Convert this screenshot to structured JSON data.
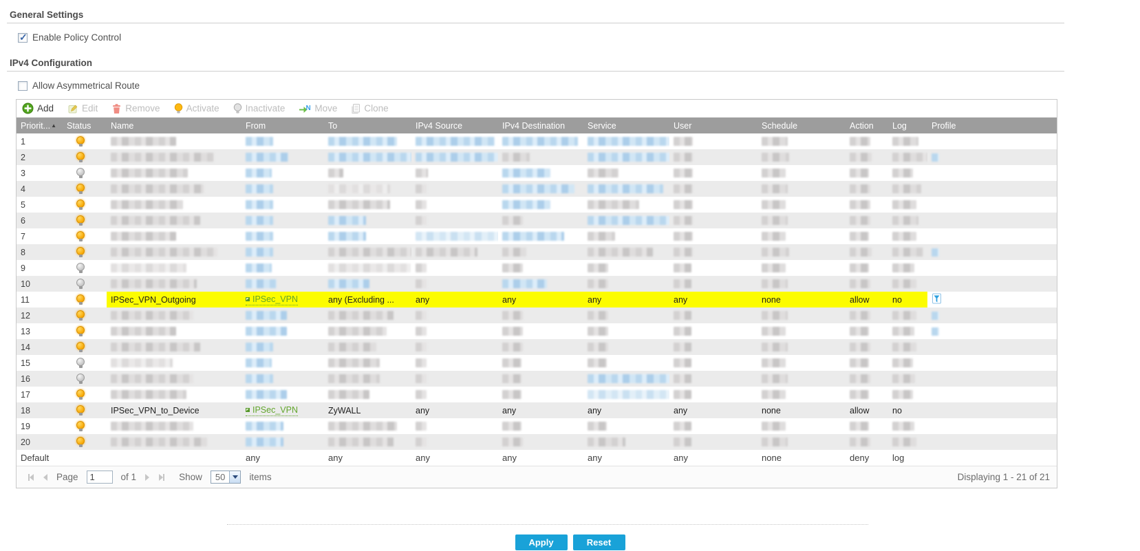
{
  "general_settings": {
    "title": "General Settings",
    "enable_policy_label": "Enable Policy Control",
    "enabled": true
  },
  "ipv4_config": {
    "title": "IPv4 Configuration",
    "allow_asym_label": "Allow Asymmetrical Route",
    "allowed": false
  },
  "toolbar": [
    {
      "id": "add",
      "label": "Add",
      "enabled": true
    },
    {
      "id": "edit",
      "label": "Edit",
      "enabled": false
    },
    {
      "id": "remove",
      "label": "Remove",
      "enabled": false
    },
    {
      "id": "activate",
      "label": "Activate",
      "enabled": false
    },
    {
      "id": "inactivate",
      "label": "Inactivate",
      "enabled": false
    },
    {
      "id": "move",
      "label": "Move",
      "enabled": false
    },
    {
      "id": "clone",
      "label": "Clone",
      "enabled": false
    }
  ],
  "table": {
    "columns": [
      {
        "key": "priority",
        "label": "Priorit...",
        "sorted": "asc"
      },
      {
        "key": "status",
        "label": "Status"
      },
      {
        "key": "name",
        "label": "Name"
      },
      {
        "key": "from",
        "label": "From"
      },
      {
        "key": "to",
        "label": "To"
      },
      {
        "key": "src",
        "label": "IPv4 Source"
      },
      {
        "key": "dst",
        "label": "IPv4 Destination"
      },
      {
        "key": "svc",
        "label": "Service"
      },
      {
        "key": "user",
        "label": "User"
      },
      {
        "key": "sched",
        "label": "Schedule"
      },
      {
        "key": "act",
        "label": "Action"
      },
      {
        "key": "log",
        "label": "Log"
      },
      {
        "key": "profile",
        "label": "Profile"
      }
    ],
    "rows": [
      {
        "priority": "1",
        "status": "on",
        "redacted": true,
        "blocks": {
          "name": [
            95,
            "g"
          ],
          "from": [
            40,
            "b"
          ],
          "to": [
            100,
            "b"
          ],
          "src": [
            115,
            "b"
          ],
          "dst": [
            110,
            "b"
          ],
          "svc": [
            120,
            "b"
          ],
          "user": [
            28,
            "g"
          ],
          "sched": [
            38,
            "g"
          ],
          "act": [
            30,
            "g"
          ],
          "log": [
            38,
            "g"
          ]
        },
        "profile": null
      },
      {
        "priority": "2",
        "status": "on",
        "redacted": true,
        "blocks": {
          "name": [
            150,
            "g"
          ],
          "from": [
            62,
            "b"
          ],
          "to": [
            160,
            "b"
          ],
          "src": [
            120,
            "b"
          ],
          "dst": [
            40,
            "g"
          ],
          "svc": [
            145,
            "b"
          ],
          "user": [
            28,
            "g"
          ],
          "sched": [
            40,
            "g"
          ],
          "act": [
            32,
            "g"
          ],
          "log": [
            52,
            "g"
          ]
        },
        "profile": "blur"
      },
      {
        "priority": "3",
        "status": "off",
        "redacted": true,
        "blocks": {
          "name": [
            112,
            "g"
          ],
          "from": [
            38,
            "b"
          ],
          "to": [
            22,
            "g"
          ],
          "src": [
            18,
            "g"
          ],
          "dst": [
            70,
            "b"
          ],
          "svc": [
            45,
            "g"
          ],
          "user": [
            28,
            "g"
          ],
          "sched": [
            35,
            "g"
          ],
          "act": [
            28,
            "g"
          ],
          "log": [
            30,
            "g"
          ]
        },
        "profile": null
      },
      {
        "priority": "4",
        "status": "on",
        "redacted": true,
        "blocks": {
          "name": [
            135,
            "g"
          ],
          "from": [
            40,
            "b"
          ],
          "to": [
            90,
            "lg"
          ],
          "src": [
            16,
            "g"
          ],
          "dst": [
            105,
            "b"
          ],
          "svc": [
            110,
            "b"
          ],
          "user": [
            28,
            "g"
          ],
          "sched": [
            38,
            "g"
          ],
          "act": [
            30,
            "g"
          ],
          "log": [
            42,
            "g"
          ]
        },
        "profile": null
      },
      {
        "priority": "5",
        "status": "on",
        "redacted": true,
        "blocks": {
          "name": [
            105,
            "g"
          ],
          "from": [
            40,
            "b"
          ],
          "to": [
            90,
            "g"
          ],
          "src": [
            16,
            "g"
          ],
          "dst": [
            70,
            "b"
          ],
          "svc": [
            75,
            "g"
          ],
          "user": [
            28,
            "g"
          ],
          "sched": [
            35,
            "g"
          ],
          "act": [
            30,
            "g"
          ],
          "log": [
            35,
            "g"
          ]
        },
        "profile": null
      },
      {
        "priority": "6",
        "status": "on",
        "redacted": true,
        "blocks": {
          "name": [
            130,
            "g"
          ],
          "from": [
            40,
            "b"
          ],
          "to": [
            55,
            "b"
          ],
          "src": [
            16,
            "g"
          ],
          "dst": [
            30,
            "g"
          ],
          "svc": [
            120,
            "b"
          ],
          "user": [
            28,
            "g"
          ],
          "sched": [
            38,
            "g"
          ],
          "act": [
            30,
            "g"
          ],
          "log": [
            38,
            "g"
          ]
        },
        "profile": null
      },
      {
        "priority": "7",
        "status": "on",
        "redacted": true,
        "blocks": {
          "name": [
            95,
            "g"
          ],
          "from": [
            40,
            "b"
          ],
          "to": [
            55,
            "b"
          ],
          "src": [
            130,
            "lb"
          ],
          "dst": [
            90,
            "b"
          ],
          "svc": [
            40,
            "g"
          ],
          "user": [
            28,
            "g"
          ],
          "sched": [
            35,
            "g"
          ],
          "act": [
            28,
            "g"
          ],
          "log": [
            35,
            "g"
          ]
        },
        "profile": null
      },
      {
        "priority": "8",
        "status": "on",
        "redacted": true,
        "blocks": {
          "name": [
            155,
            "g"
          ],
          "from": [
            40,
            "b"
          ],
          "to": [
            130,
            "g"
          ],
          "src": [
            90,
            "g"
          ],
          "dst": [
            35,
            "g"
          ],
          "svc": [
            95,
            "g"
          ],
          "user": [
            28,
            "g"
          ],
          "sched": [
            40,
            "g"
          ],
          "act": [
            32,
            "g"
          ],
          "log": [
            45,
            "g"
          ]
        },
        "profile": "blur"
      },
      {
        "priority": "9",
        "status": "off",
        "redacted": true,
        "blocks": {
          "name": [
            110,
            "lg"
          ],
          "from": [
            38,
            "b"
          ],
          "to": [
            120,
            "lg"
          ],
          "src": [
            16,
            "g"
          ],
          "dst": [
            30,
            "g"
          ],
          "svc": [
            30,
            "g"
          ],
          "user": [
            26,
            "g"
          ],
          "sched": [
            35,
            "g"
          ],
          "act": [
            28,
            "g"
          ],
          "log": [
            32,
            "g"
          ]
        },
        "profile": null
      },
      {
        "priority": "10",
        "status": "off",
        "redacted": true,
        "blocks": {
          "name": [
            125,
            "g"
          ],
          "from": [
            45,
            "b"
          ],
          "to": [
            60,
            "b"
          ],
          "src": [
            16,
            "g"
          ],
          "dst": [
            65,
            "b"
          ],
          "svc": [
            30,
            "g"
          ],
          "user": [
            26,
            "g"
          ],
          "sched": [
            38,
            "g"
          ],
          "act": [
            30,
            "g"
          ],
          "log": [
            35,
            "g"
          ]
        },
        "profile": null
      },
      {
        "priority": "11",
        "status": "on",
        "highlight": true,
        "from_link": true,
        "cells": {
          "name": "IPSec_VPN_Outgoing",
          "from": "IPSec_VPN",
          "to": "any (Excluding ...",
          "src": "any",
          "dst": "any",
          "svc": "any",
          "user": "any",
          "sched": "none",
          "act": "allow",
          "log": "no"
        },
        "profile": "funnel"
      },
      {
        "priority": "12",
        "status": "on",
        "redacted": true,
        "blocks": {
          "name": [
            120,
            "g"
          ],
          "from": [
            60,
            "b"
          ],
          "to": [
            95,
            "g"
          ],
          "src": [
            16,
            "g"
          ],
          "dst": [
            30,
            "g"
          ],
          "svc": [
            30,
            "g"
          ],
          "user": [
            26,
            "g"
          ],
          "sched": [
            38,
            "g"
          ],
          "act": [
            30,
            "g"
          ],
          "log": [
            35,
            "g"
          ]
        },
        "profile": "blur"
      },
      {
        "priority": "13",
        "status": "on",
        "redacted": true,
        "blocks": {
          "name": [
            95,
            "g"
          ],
          "from": [
            60,
            "b"
          ],
          "to": [
            85,
            "g"
          ],
          "src": [
            16,
            "g"
          ],
          "dst": [
            30,
            "g"
          ],
          "svc": [
            30,
            "g"
          ],
          "user": [
            26,
            "g"
          ],
          "sched": [
            35,
            "g"
          ],
          "act": [
            28,
            "g"
          ],
          "log": [
            32,
            "g"
          ]
        },
        "profile": "blur"
      },
      {
        "priority": "14",
        "status": "on",
        "redacted": true,
        "blocks": {
          "name": [
            130,
            "g"
          ],
          "from": [
            40,
            "b"
          ],
          "to": [
            70,
            "g"
          ],
          "src": [
            16,
            "g"
          ],
          "dst": [
            30,
            "g"
          ],
          "svc": [
            30,
            "g"
          ],
          "user": [
            26,
            "g"
          ],
          "sched": [
            38,
            "g"
          ],
          "act": [
            30,
            "g"
          ],
          "log": [
            35,
            "g"
          ]
        },
        "profile": null
      },
      {
        "priority": "15",
        "status": "off",
        "redacted": true,
        "blocks": {
          "name": [
            90,
            "lg"
          ],
          "from": [
            38,
            "b"
          ],
          "to": [
            75,
            "g"
          ],
          "src": [
            16,
            "g"
          ],
          "dst": [
            28,
            "g"
          ],
          "svc": [
            28,
            "g"
          ],
          "user": [
            26,
            "g"
          ],
          "sched": [
            35,
            "g"
          ],
          "act": [
            28,
            "g"
          ],
          "log": [
            30,
            "g"
          ]
        },
        "profile": null
      },
      {
        "priority": "16",
        "status": "off",
        "redacted": true,
        "blocks": {
          "name": [
            120,
            "g"
          ],
          "from": [
            40,
            "b"
          ],
          "to": [
            75,
            "g"
          ],
          "src": [
            16,
            "g"
          ],
          "dst": [
            28,
            "g"
          ],
          "svc": [
            140,
            "b"
          ],
          "user": [
            26,
            "g"
          ],
          "sched": [
            38,
            "g"
          ],
          "act": [
            30,
            "g"
          ],
          "log": [
            33,
            "g"
          ]
        },
        "profile": null
      },
      {
        "priority": "17",
        "status": "on",
        "redacted": true,
        "blocks": {
          "name": [
            110,
            "g"
          ],
          "from": [
            60,
            "b"
          ],
          "to": [
            60,
            "g"
          ],
          "src": [
            16,
            "g"
          ],
          "dst": [
            28,
            "g"
          ],
          "svc": [
            120,
            "lb"
          ],
          "user": [
            26,
            "g"
          ],
          "sched": [
            35,
            "g"
          ],
          "act": [
            28,
            "g"
          ],
          "log": [
            30,
            "g"
          ]
        },
        "profile": null
      },
      {
        "priority": "18",
        "status": "on",
        "highlight": true,
        "from_link": true,
        "cells": {
          "name": "IPSec_VPN_to_Device",
          "from": "IPSec_VPN",
          "to": "ZyWALL",
          "src": "any",
          "dst": "any",
          "svc": "any",
          "user": "any",
          "sched": "none",
          "act": "allow",
          "log": "no"
        },
        "profile": null
      },
      {
        "priority": "19",
        "status": "on",
        "redacted": true,
        "blocks": {
          "name": [
            120,
            "g"
          ],
          "from": [
            55,
            "b"
          ],
          "to": [
            100,
            "g"
          ],
          "src": [
            16,
            "g"
          ],
          "dst": [
            28,
            "g"
          ],
          "svc": [
            28,
            "g"
          ],
          "user": [
            26,
            "g"
          ],
          "sched": [
            35,
            "g"
          ],
          "act": [
            28,
            "g"
          ],
          "log": [
            32,
            "g"
          ]
        },
        "profile": null
      },
      {
        "priority": "20",
        "status": "on",
        "redacted": true,
        "blocks": {
          "name": [
            140,
            "g"
          ],
          "from": [
            55,
            "b"
          ],
          "to": [
            95,
            "g"
          ],
          "src": [
            16,
            "g"
          ],
          "dst": [
            30,
            "g"
          ],
          "svc": [
            55,
            "g"
          ],
          "user": [
            26,
            "g"
          ],
          "sched": [
            38,
            "g"
          ],
          "act": [
            30,
            "g"
          ],
          "log": [
            35,
            "g"
          ]
        },
        "profile": null
      }
    ],
    "default_row": {
      "priority": "Default",
      "cells": {
        "name": "",
        "from": "any",
        "to": "any",
        "src": "any",
        "dst": "any",
        "svc": "any",
        "user": "any",
        "sched": "none",
        "act": "deny",
        "log": "log"
      }
    }
  },
  "pagination": {
    "page_label": "Page",
    "page_value": "1",
    "of_text": "of 1",
    "show_label": "Show",
    "page_size": "50",
    "items_label": "items",
    "displaying_text": "Displaying 1 - 21 of 21"
  },
  "actions": {
    "apply": "Apply",
    "reset": "Reset"
  },
  "colors": {
    "highlight": "#fcfc00",
    "link_green": "#62a52c",
    "accent_blue": "#19a2d8",
    "header_gray": "#9d9d9d",
    "active_bulb": "#f7a600"
  }
}
